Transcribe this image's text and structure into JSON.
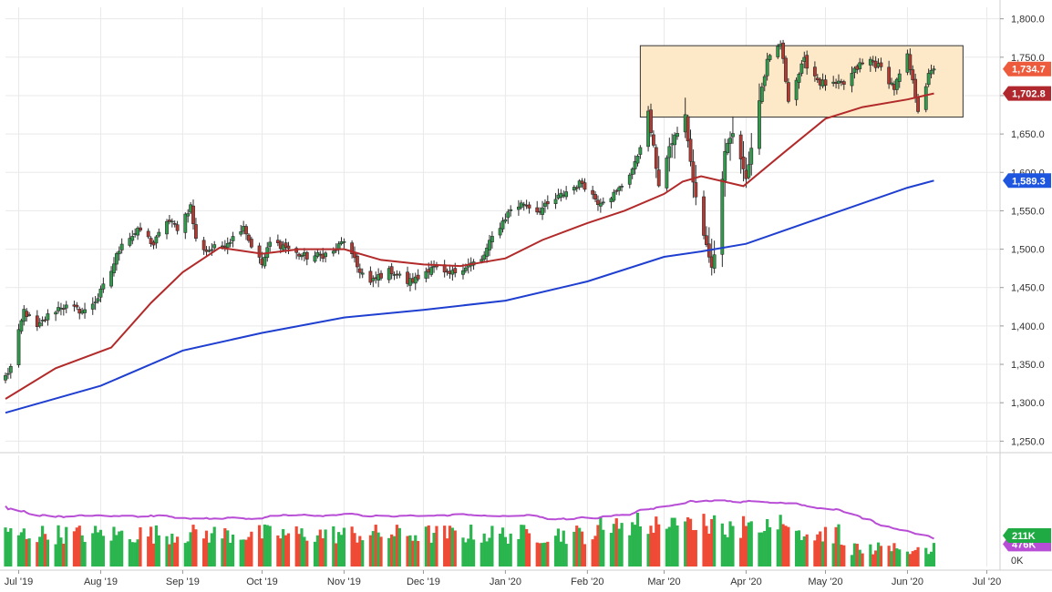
{
  "chart_data": {
    "type": "candlestick",
    "price_axis": {
      "ticks": [
        1800,
        1750,
        1700,
        1650,
        1600,
        1550,
        1500,
        1450,
        1400,
        1350,
        1300,
        1250
      ],
      "tick_labels": [
        "1,800.0",
        "1,750.0",
        "1,700.0",
        "1,650.0",
        "1,600.0",
        "1,550.0",
        "1,500.0",
        "1,450.0",
        "1,400.0",
        "1,350.0",
        "1,300.0",
        "1,250.0"
      ],
      "range": [
        1235,
        1815
      ]
    },
    "volume_axis": {
      "tick_labels": [
        "0K"
      ],
      "range": [
        0,
        600
      ]
    },
    "time_axis": {
      "start": "2019-06-26",
      "end": "2020-07-06",
      "labels": [
        {
          "date": "2019-07-01",
          "label": "Jul '19"
        },
        {
          "date": "2019-08-01",
          "label": "Aug '19"
        },
        {
          "date": "2019-09-01",
          "label": "Sep '19"
        },
        {
          "date": "2019-10-01",
          "label": "Oct '19"
        },
        {
          "date": "2019-11-01",
          "label": "Nov '19"
        },
        {
          "date": "2019-12-01",
          "label": "Dec '19"
        },
        {
          "date": "2020-01-01",
          "label": "Jan '20"
        },
        {
          "date": "2020-02-01",
          "label": "Feb '20"
        },
        {
          "date": "2020-03-01",
          "label": "Mar '20"
        },
        {
          "date": "2020-04-01",
          "label": "Apr '20"
        },
        {
          "date": "2020-05-01",
          "label": "May '20"
        },
        {
          "date": "2020-06-01",
          "label": "Jun '20"
        },
        {
          "date": "2020-07-01",
          "label": "Jul '20"
        }
      ]
    },
    "close_anchors": [
      [
        "2019-06-26",
        1334
      ],
      [
        "2019-06-28",
        1346
      ],
      [
        "2019-07-03",
        1420
      ],
      [
        "2019-07-08",
        1397
      ],
      [
        "2019-07-12",
        1413
      ],
      [
        "2019-07-17",
        1426
      ],
      [
        "2019-07-22",
        1422
      ],
      [
        "2019-07-26",
        1419
      ],
      [
        "2019-07-31",
        1437
      ],
      [
        "2019-08-05",
        1472
      ],
      [
        "2019-08-09",
        1510
      ],
      [
        "2019-08-13",
        1518
      ],
      [
        "2019-08-16",
        1525
      ],
      [
        "2019-08-21",
        1506
      ],
      [
        "2019-08-26",
        1538
      ],
      [
        "2019-08-30",
        1528
      ],
      [
        "2019-09-04",
        1556
      ],
      [
        "2019-09-06",
        1512
      ],
      [
        "2019-09-10",
        1498
      ],
      [
        "2019-09-16",
        1505
      ],
      [
        "2019-09-20",
        1515
      ],
      [
        "2019-09-24",
        1532
      ],
      [
        "2019-09-26",
        1512
      ],
      [
        "2019-10-01",
        1480
      ],
      [
        "2019-10-04",
        1508
      ],
      [
        "2019-10-09",
        1505
      ],
      [
        "2019-10-14",
        1494
      ],
      [
        "2019-10-18",
        1490
      ],
      [
        "2019-10-23",
        1492
      ],
      [
        "2019-10-28",
        1496
      ],
      [
        "2019-11-01",
        1512
      ],
      [
        "2019-11-06",
        1477
      ],
      [
        "2019-11-11",
        1455
      ],
      [
        "2019-11-14",
        1465
      ],
      [
        "2019-11-19",
        1472
      ],
      [
        "2019-11-25",
        1457
      ],
      [
        "2019-11-29",
        1462
      ],
      [
        "2019-12-04",
        1478
      ],
      [
        "2019-12-10",
        1465
      ],
      [
        "2019-12-16",
        1477
      ],
      [
        "2019-12-23",
        1485
      ],
      [
        "2019-12-27",
        1515
      ],
      [
        "2020-01-03",
        1552
      ],
      [
        "2020-01-08",
        1560
      ],
      [
        "2020-01-13",
        1550
      ],
      [
        "2020-01-17",
        1557
      ],
      [
        "2020-01-24",
        1575
      ],
      [
        "2020-01-30",
        1587
      ],
      [
        "2020-02-05",
        1562
      ],
      [
        "2020-02-12",
        1573
      ],
      [
        "2020-02-19",
        1610
      ],
      [
        "2020-02-24",
        1676
      ],
      [
        "2020-02-28",
        1585
      ],
      [
        "2020-03-04",
        1640
      ],
      [
        "2020-03-09",
        1672
      ],
      [
        "2020-03-12",
        1585
      ],
      [
        "2020-03-16",
        1516
      ],
      [
        "2020-03-19",
        1480
      ],
      [
        "2020-03-20",
        1490
      ],
      [
        "2020-03-24",
        1631
      ],
      [
        "2020-03-27",
        1652
      ],
      [
        "2020-04-01",
        1591
      ],
      [
        "2020-04-06",
        1694
      ],
      [
        "2020-04-09",
        1743
      ],
      [
        "2020-04-14",
        1768
      ],
      [
        "2020-04-17",
        1697
      ],
      [
        "2020-04-23",
        1745
      ],
      [
        "2020-04-29",
        1717
      ],
      [
        "2020-05-04",
        1713
      ],
      [
        "2020-05-08",
        1715
      ],
      [
        "2020-05-14",
        1740
      ],
      [
        "2020-05-18",
        1746
      ],
      [
        "2020-05-22",
        1735
      ],
      [
        "2020-05-27",
        1710
      ],
      [
        "2020-06-01",
        1750
      ],
      [
        "2020-06-05",
        1683
      ],
      [
        "2020-06-09",
        1725
      ],
      [
        "2020-06-11",
        1734.7
      ]
    ],
    "series": [
      {
        "name": "Daily price",
        "kind": "candlestick",
        "up_color": "#2e9c4a",
        "down_color": "#b23a32"
      },
      {
        "kind": "moving_average",
        "color": "#b22a2a",
        "last_value_label": "1,702.8",
        "points": [
          [
            "2019-06-26",
            1305
          ],
          [
            "2019-07-15",
            1345
          ],
          [
            "2019-08-05",
            1372
          ],
          [
            "2019-08-20",
            1430
          ],
          [
            "2019-09-01",
            1470
          ],
          [
            "2019-09-15",
            1502
          ],
          [
            "2019-10-01",
            1494
          ],
          [
            "2019-10-15",
            1500
          ],
          [
            "2019-11-01",
            1500
          ],
          [
            "2019-11-15",
            1486
          ],
          [
            "2019-12-01",
            1480
          ],
          [
            "2019-12-15",
            1478
          ],
          [
            "2020-01-01",
            1488
          ],
          [
            "2020-01-15",
            1512
          ],
          [
            "2020-02-01",
            1534
          ],
          [
            "2020-02-15",
            1550
          ],
          [
            "2020-03-01",
            1572
          ],
          [
            "2020-03-08",
            1588
          ],
          [
            "2020-03-15",
            1595
          ],
          [
            "2020-03-31",
            1582
          ],
          [
            "2020-04-15",
            1625
          ],
          [
            "2020-05-01",
            1670
          ],
          [
            "2020-05-15",
            1685
          ],
          [
            "2020-06-01",
            1695
          ],
          [
            "2020-06-11",
            1702.8
          ]
        ]
      },
      {
        "kind": "moving_average",
        "color": "#1f3fd0",
        "last_value_label": "1,589.3",
        "points": [
          [
            "2019-06-26",
            1287
          ],
          [
            "2019-08-01",
            1322
          ],
          [
            "2019-09-01",
            1368
          ],
          [
            "2019-10-01",
            1391
          ],
          [
            "2019-11-01",
            1411
          ],
          [
            "2019-12-01",
            1421
          ],
          [
            "2020-01-01",
            1433
          ],
          [
            "2020-02-01",
            1458
          ],
          [
            "2020-03-01",
            1490
          ],
          [
            "2020-03-15",
            1497
          ],
          [
            "2020-04-01",
            1507
          ],
          [
            "2020-05-01",
            1543
          ],
          [
            "2020-06-01",
            1580
          ],
          [
            "2020-06-11",
            1589.3
          ]
        ]
      },
      {
        "name": "Volume",
        "kind": "volume_bars",
        "range_estimate": [
          60,
          290
        ]
      },
      {
        "kind": "volume_average",
        "color": "#b84dd6",
        "last_value_label": "476K"
      }
    ],
    "last_price_label": "1,734.7",
    "last_volume_label": "211K",
    "highlight_zone": {
      "y_range": [
        1672,
        1765
      ],
      "x_range": [
        "2020-02-21",
        "2020-06-22"
      ],
      "fill": "#fde9c8"
    },
    "grid": true,
    "legend": "none"
  }
}
